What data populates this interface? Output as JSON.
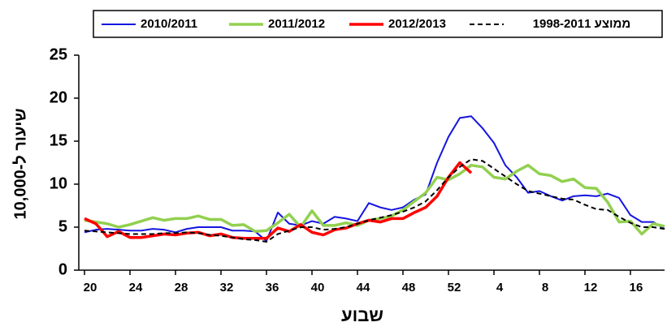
{
  "chart_data": {
    "type": "line",
    "x_label": "שבוע",
    "y_label": "שיעור ל-10,000",
    "categories": [
      "20",
      null,
      null,
      null,
      "24",
      null,
      null,
      null,
      "28",
      null,
      null,
      null,
      "32",
      null,
      null,
      null,
      "36",
      null,
      null,
      null,
      "40",
      null,
      null,
      null,
      "44",
      null,
      null,
      null,
      "48",
      null,
      null,
      null,
      "52",
      null,
      null,
      null,
      "4",
      null,
      null,
      null,
      "8",
      null,
      null,
      null,
      "12",
      null,
      null,
      null,
      "16",
      null,
      null,
      null
    ],
    "ylim": [
      0,
      25
    ],
    "yticks": [
      0,
      5,
      10,
      15,
      20,
      25
    ],
    "series": [
      {
        "name": "2010/2011",
        "color": "#1515e0",
        "width": 2,
        "values": [
          4.4,
          4.7,
          4.8,
          4.7,
          4.6,
          4.6,
          4.8,
          4.7,
          4.4,
          4.8,
          5.0,
          5.0,
          5.0,
          4.6,
          4.6,
          4.5,
          3.4,
          6.7,
          5.4,
          5.2,
          5.7,
          5.4,
          6.2,
          6.0,
          5.7,
          7.8,
          7.3,
          7.0,
          7.3,
          8.2,
          8.8,
          12.5,
          15.5,
          17.7,
          17.9,
          16.5,
          14.8,
          12.2,
          10.8,
          9.0,
          9.2,
          8.6,
          8.1,
          8.6,
          8.7,
          8.6,
          8.9,
          8.4,
          6.4,
          5.6,
          5.6,
          4.8
        ]
      },
      {
        "name": "2011/2012",
        "color": "#92d050",
        "width": 3.5,
        "values": [
          5.8,
          5.6,
          5.4,
          5.0,
          5.3,
          5.7,
          6.1,
          5.8,
          6.0,
          6.0,
          6.3,
          5.9,
          5.9,
          5.2,
          5.3,
          4.5,
          4.6,
          5.5,
          6.5,
          5.0,
          6.9,
          5.2,
          5.2,
          5.5,
          5.2,
          5.8,
          6.0,
          6.3,
          7.0,
          8.0,
          9.0,
          10.8,
          10.5,
          11.2,
          12.2,
          12.0,
          10.8,
          10.6,
          11.5,
          12.2,
          11.2,
          11.0,
          10.3,
          10.6,
          9.6,
          9.5,
          7.9,
          5.6,
          5.7,
          4.2,
          5.4,
          5.1
        ]
      },
      {
        "name": "2012/2013",
        "color": "#ff0000",
        "width": 3.5,
        "values": [
          6.0,
          5.4,
          3.9,
          4.5,
          3.8,
          3.8,
          4.0,
          4.2,
          4.1,
          4.3,
          4.4,
          4.0,
          4.2,
          3.8,
          3.7,
          3.7,
          3.7,
          4.9,
          4.5,
          5.3,
          4.4,
          4.1,
          4.7,
          4.9,
          5.4,
          5.8,
          5.6,
          6.0,
          6.0,
          6.7,
          7.3,
          8.6,
          10.8,
          12.5,
          11.3,
          null,
          null,
          null,
          null,
          null,
          null,
          null,
          null,
          null,
          null,
          null,
          null,
          null,
          null,
          null,
          null,
          null
        ]
      },
      {
        "name": "ממוצע 1998-2011",
        "color": "#000000",
        "width": 2,
        "dashed": true,
        "values": [
          4.6,
          4.5,
          4.4,
          4.3,
          4.2,
          4.2,
          4.2,
          4.3,
          4.3,
          4.4,
          4.3,
          4.1,
          4.0,
          3.8,
          3.6,
          3.5,
          3.3,
          4.2,
          4.6,
          5.0,
          5.0,
          4.7,
          4.8,
          5.0,
          5.4,
          5.8,
          6.1,
          6.4,
          6.8,
          7.3,
          8.0,
          9.3,
          10.8,
          12.0,
          12.9,
          12.7,
          11.8,
          10.9,
          10.0,
          9.2,
          8.9,
          8.6,
          8.3,
          8.2,
          7.6,
          7.1,
          7.0,
          6.2,
          5.5,
          5.0,
          5.0,
          4.8
        ]
      }
    ]
  }
}
